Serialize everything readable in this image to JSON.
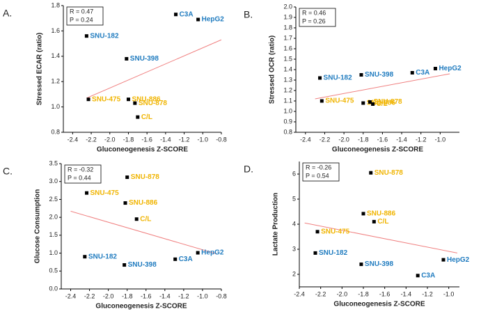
{
  "chart_data": [
    {
      "type": "scatter",
      "panel": "A.",
      "xlabel": "Gluconeogenesis Z-SCORE",
      "ylabel": "Stressed ECAR (ratio)",
      "annotation": [
        "R = 0.47",
        "P = 0.24"
      ],
      "labels": [
        "C3A",
        "HepG2",
        "SNU-182",
        "SNU-398",
        "SNU-475",
        "SNU-886",
        "SNU-878",
        "C/L"
      ],
      "label_colors": [
        "#1f7bbf",
        "#1f7bbf",
        "#1f7bbf",
        "#1f7bbf",
        "#f0b400",
        "#f0b400",
        "#f0b400",
        "#f0b400"
      ],
      "color": "#000000",
      "x": [
        -1.29,
        -1.05,
        -2.25,
        -1.82,
        -2.23,
        -1.8,
        -1.73,
        -1.7
      ],
      "values": [
        1.73,
        1.69,
        1.56,
        1.38,
        1.06,
        1.06,
        1.03,
        0.92
      ],
      "trendline": {
        "x": [
          -2.25,
          -0.8
        ],
        "values": [
          1.07,
          1.53
        ],
        "color": "#f08080"
      },
      "xlim": [
        -2.5,
        -0.8
      ],
      "ylim": [
        0.8,
        1.8
      ],
      "xticks": [
        -2.4,
        -2.2,
        {
          "value": -2,
          "label": "-2.0"
        },
        -1.8,
        -1.6,
        -1.4,
        -1.2,
        {
          "value": -1,
          "label": "-1.0"
        },
        -0.8
      ],
      "yticks": [
        0.8,
        {
          "value": 1,
          "label": "1.0"
        },
        1.2,
        1.4,
        1.6,
        1.8
      ]
    },
    {
      "type": "scatter",
      "panel": "B.",
      "xlabel": "Gluconeogenesis Z-SCORE",
      "ylabel": "Stressed OCR (ratio)",
      "annotation": [
        "R = 0.46",
        "P = 0.26"
      ],
      "labels": [
        "SNU-182",
        "SNU-398",
        "C3A",
        "HepG2",
        "SNU-475",
        "SNU-886",
        "SNU-878",
        "C/L"
      ],
      "label_colors": [
        "#1f7bbf",
        "#1f7bbf",
        "#1f7bbf",
        "#1f7bbf",
        "#f0b400",
        "#f0b400",
        "#f0b400",
        "#f0b400"
      ],
      "color": "#000000",
      "x": [
        -2.25,
        -1.82,
        -1.29,
        -1.05,
        -2.23,
        -1.8,
        -1.73,
        -1.7
      ],
      "values": [
        1.32,
        1.35,
        1.37,
        1.41,
        1.1,
        1.08,
        1.09,
        1.07
      ],
      "trendline": {
        "x": [
          -2.3,
          -0.9
        ],
        "values": [
          1.12,
          1.36
        ],
        "color": "#f08080"
      },
      "xlim": [
        -2.5,
        -0.8
      ],
      "ylim": [
        0.8,
        2
      ],
      "xticks": [
        -2.4,
        -2.2,
        {
          "value": -2,
          "label": "-2.0"
        },
        -1.8,
        -1.6,
        -1.4,
        -1.2,
        {
          "value": -1,
          "label": "-1.0"
        }
      ],
      "yticks": [
        0.8,
        0.9,
        {
          "value": 1,
          "label": "1.0"
        },
        1.1,
        1.2,
        1.3,
        1.4,
        1.5,
        1.6,
        1.7,
        1.8,
        1.9,
        {
          "value": 2,
          "label": "2.0"
        }
      ]
    },
    {
      "type": "scatter",
      "panel": "C.",
      "xlabel": "Gluconeogenesis Z-SCORE",
      "ylabel": "Glucose Consumption",
      "annotation": [
        "R = -0.32",
        "P = 0.44"
      ],
      "labels": [
        "SNU-878",
        "SNU-475",
        "SNU-886",
        "C/L",
        "SNU-182",
        "SNU-398",
        "C3A",
        "HepG2"
      ],
      "label_colors": [
        "#f0b400",
        "#f0b400",
        "#f0b400",
        "#f0b400",
        "#1f7bbf",
        "#1f7bbf",
        "#1f7bbf",
        "#1f7bbf"
      ],
      "color": "#000000",
      "x": [
        -1.8,
        -2.23,
        -1.82,
        -1.7,
        -2.25,
        -1.83,
        -1.29,
        -1.05
      ],
      "values": [
        3.12,
        2.68,
        2.4,
        1.95,
        0.9,
        0.67,
        0.83,
        1.01
      ],
      "trendline": {
        "x": [
          -2.4,
          -0.85
        ],
        "values": [
          2.17,
          0.98
        ],
        "color": "#f08080"
      },
      "xlim": [
        -2.5,
        -0.8
      ],
      "ylim": [
        0,
        3.5
      ],
      "xticks": [
        -2.4,
        -2.2,
        {
          "value": -2,
          "label": "-2.0"
        },
        -1.8,
        -1.6,
        -1.4,
        -1.2,
        {
          "value": -1,
          "label": "-1.0"
        },
        -0.8
      ],
      "yticks": [
        {
          "value": 0,
          "label": "0.0"
        },
        0.5,
        {
          "value": 1,
          "label": "1.0"
        },
        1.5,
        {
          "value": 2,
          "label": "2.0"
        },
        2.5,
        {
          "value": 3,
          "label": "3.0"
        },
        3.5
      ]
    },
    {
      "type": "scatter",
      "panel": "D.",
      "xlabel": "Gluconeogenesis Z-SCORE",
      "ylabel": "Lactate Production",
      "annotation": [
        "R = -0.26",
        "P = 0.54"
      ],
      "labels": [
        "SNU-878",
        "SNU-886",
        "C/L",
        "SNU-475",
        "SNU-182",
        "SNU-398",
        "HepG2",
        "C3A"
      ],
      "label_colors": [
        "#f0b400",
        "#f0b400",
        "#f0b400",
        "#f0b400",
        "#1f7bbf",
        "#1f7bbf",
        "#1f7bbf",
        "#1f7bbf"
      ],
      "color": "#000000",
      "x": [
        -1.73,
        -1.8,
        -1.7,
        -2.23,
        -2.25,
        -1.82,
        -1.05,
        -1.29
      ],
      "values": [
        6.05,
        4.42,
        4.1,
        3.7,
        2.85,
        2.4,
        2.58,
        1.95
      ],
      "trendline": {
        "x": [
          -2.35,
          -0.92
        ],
        "values": [
          4.05,
          2.85
        ],
        "color": "#f08080"
      },
      "xlim": [
        -2.4,
        -0.9
      ],
      "ylim": [
        1.5,
        6.5
      ],
      "xticks": [
        -2.4,
        -2.2,
        {
          "value": -2,
          "label": "-2.0"
        },
        -1.8,
        -1.6,
        -1.4,
        -1.2,
        {
          "value": -1,
          "label": "-1.0"
        }
      ],
      "yticks": [
        2,
        3,
        4,
        5,
        6
      ]
    }
  ]
}
